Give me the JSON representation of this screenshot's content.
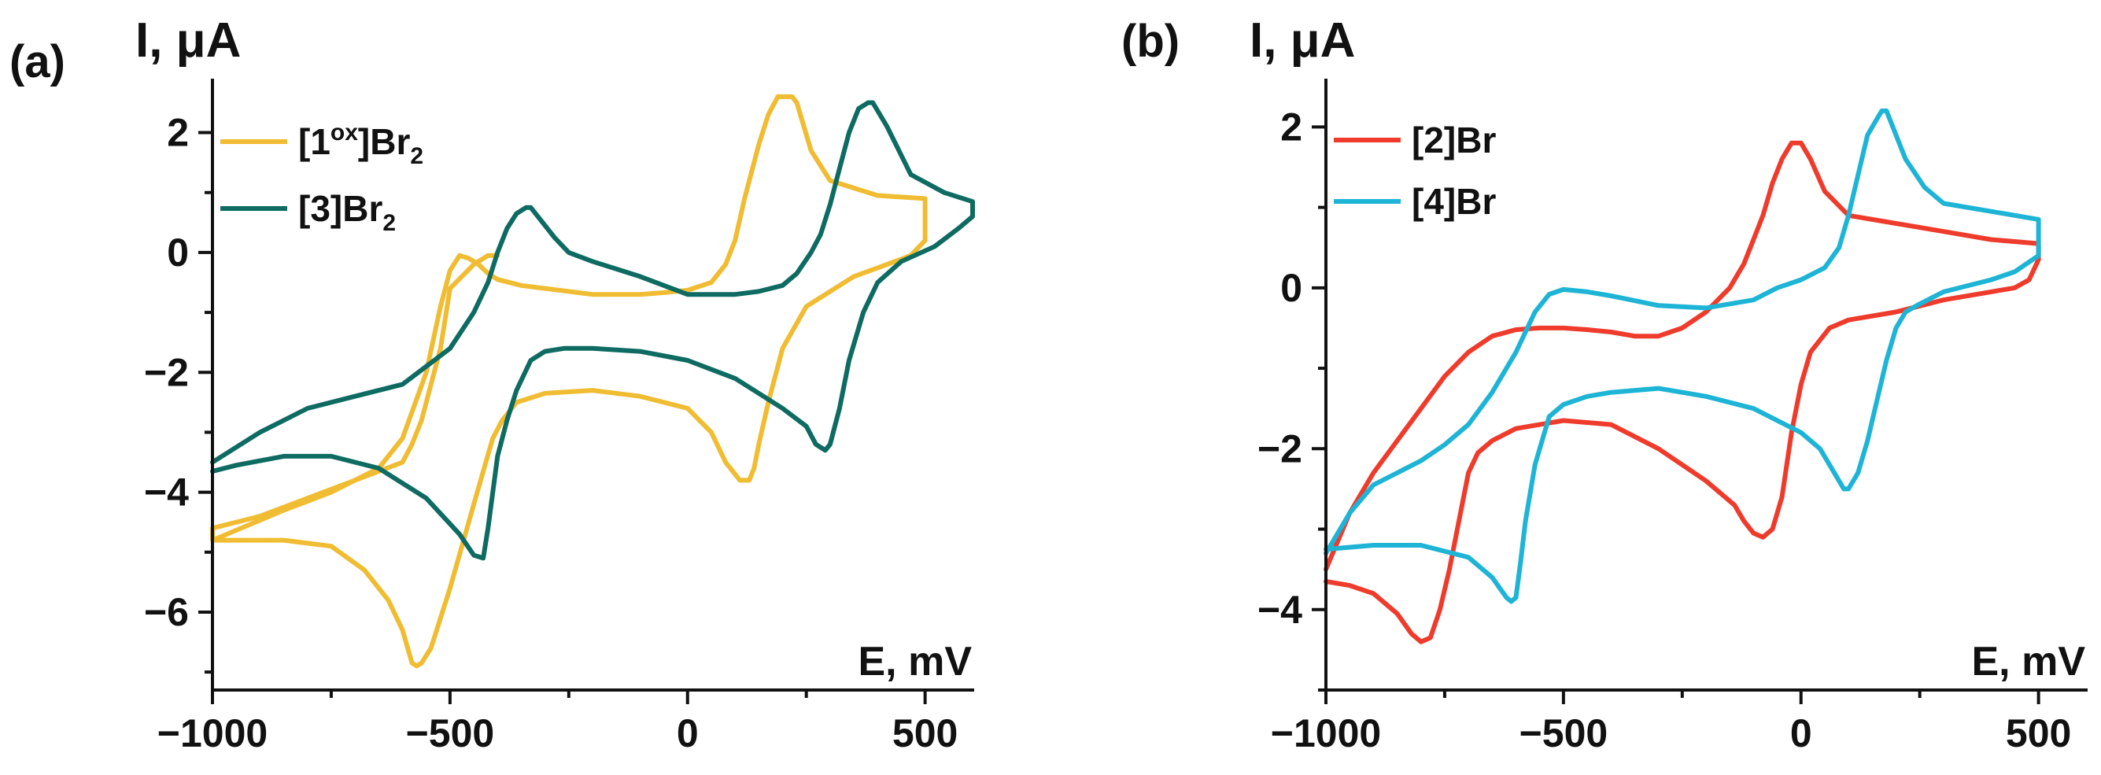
{
  "chart_data": [
    {
      "type": "line",
      "panel_label": "(a)",
      "ylabel": "I, μA",
      "xlabel": "E, mV",
      "xlim": [
        -1000,
        600
      ],
      "ylim": [
        -7.3,
        2.9
      ],
      "xticks": [
        -1000,
        -500,
        0,
        500
      ],
      "xtick_labels": [
        "−1000",
        "−500",
        "0",
        "500"
      ],
      "yticks": [
        -6,
        -4,
        -2,
        0,
        2
      ],
      "ytick_labels": [
        "−6",
        "−4",
        "−2",
        "0",
        "2"
      ],
      "legend_position": "top-left",
      "series": [
        {
          "name": "[1ox]Br2",
          "legend": {
            "base": "[1",
            "sup": "ox",
            "mid": "]Br",
            "sub": "2"
          },
          "color": "#F0BC32",
          "x": [
            -1000,
            -850,
            -750,
            -650,
            -600,
            -550,
            -520,
            -500,
            -480,
            -460,
            -440,
            -420,
            -400,
            -350,
            -300,
            -200,
            -100,
            -50,
            0,
            50,
            80,
            100,
            120,
            150,
            170,
            190,
            210,
            220,
            230,
            260,
            300,
            400,
            500,
            500,
            470,
            420,
            350,
            250,
            200,
            170,
            150,
            140,
            130,
            110,
            80,
            50,
            0,
            -100,
            -200,
            -300,
            -360,
            -390,
            -410,
            -450,
            -500,
            -540,
            -560,
            -570,
            -580,
            -600,
            -630,
            -680,
            -750,
            -850,
            -950,
            -1000,
            -1000,
            -900,
            -800,
            -700,
            -600,
            -580,
            -560,
            -540,
            -520,
            -500,
            -450,
            -420,
            -400
          ],
          "y": [
            -4.8,
            -4.3,
            -4.0,
            -3.6,
            -3.1,
            -2.0,
            -0.9,
            -0.3,
            -0.05,
            -0.1,
            -0.2,
            -0.35,
            -0.45,
            -0.55,
            -0.6,
            -0.7,
            -0.7,
            -0.67,
            -0.63,
            -0.5,
            -0.2,
            0.2,
            0.9,
            1.8,
            2.3,
            2.6,
            2.6,
            2.6,
            2.5,
            1.7,
            1.2,
            0.95,
            0.9,
            0.2,
            -0.05,
            -0.2,
            -0.4,
            -0.9,
            -1.6,
            -2.5,
            -3.2,
            -3.6,
            -3.8,
            -3.8,
            -3.5,
            -3.0,
            -2.6,
            -2.4,
            -2.3,
            -2.35,
            -2.5,
            -2.8,
            -3.1,
            -4.2,
            -5.6,
            -6.6,
            -6.85,
            -6.9,
            -6.85,
            -6.3,
            -5.8,
            -5.3,
            -4.9,
            -4.8,
            -4.8,
            -4.8,
            -4.6,
            -4.4,
            -4.1,
            -3.8,
            -3.5,
            -3.2,
            -2.8,
            -2.2,
            -1.6,
            -0.6,
            -0.2,
            -0.05,
            -0.05
          ]
        },
        {
          "name": "[3]Br2",
          "legend": {
            "base": "[3",
            "sup": "",
            "mid": "]Br",
            "sub": "2"
          },
          "color": "#0E6B62",
          "x": [
            -1000,
            -900,
            -800,
            -700,
            -600,
            -500,
            -450,
            -420,
            -400,
            -380,
            -360,
            -340,
            -330,
            -310,
            -280,
            -250,
            -200,
            -100,
            0,
            100,
            150,
            200,
            230,
            260,
            280,
            300,
            320,
            340,
            360,
            380,
            390,
            420,
            470,
            540,
            600,
            600,
            570,
            520,
            450,
            400,
            370,
            340,
            320,
            310,
            300,
            290,
            270,
            250,
            200,
            100,
            0,
            -100,
            -200,
            -260,
            -300,
            -330,
            -360,
            -380,
            -400,
            -420,
            -430,
            -450,
            -480,
            -550,
            -650,
            -750,
            -850,
            -950,
            -1000
          ],
          "y": [
            -3.5,
            -3.0,
            -2.6,
            -2.4,
            -2.2,
            -1.6,
            -1.0,
            -0.5,
            0.0,
            0.4,
            0.65,
            0.75,
            0.75,
            0.55,
            0.25,
            0.0,
            -0.15,
            -0.4,
            -0.7,
            -0.7,
            -0.65,
            -0.55,
            -0.35,
            0.0,
            0.3,
            0.8,
            1.4,
            2.0,
            2.4,
            2.5,
            2.5,
            2.1,
            1.3,
            1.0,
            0.85,
            0.6,
            0.4,
            0.1,
            -0.15,
            -0.5,
            -1.0,
            -1.8,
            -2.6,
            -2.9,
            -3.2,
            -3.3,
            -3.2,
            -2.9,
            -2.6,
            -2.1,
            -1.8,
            -1.65,
            -1.6,
            -1.6,
            -1.65,
            -1.8,
            -2.3,
            -2.8,
            -3.4,
            -4.6,
            -5.1,
            -5.05,
            -4.7,
            -4.1,
            -3.6,
            -3.4,
            -3.4,
            -3.55,
            -3.65
          ]
        }
      ]
    },
    {
      "type": "line",
      "panel_label": "(b)",
      "ylabel": "I, μA",
      "xlabel": "E, mV",
      "xlim": [
        -1000,
        600
      ],
      "ylim": [
        -5.0,
        2.6
      ],
      "xticks": [
        -1000,
        -500,
        0,
        500
      ],
      "xtick_labels": [
        "−1000",
        "−500",
        "0",
        "500"
      ],
      "yticks": [
        -4,
        -2,
        0,
        2
      ],
      "ytick_labels": [
        "−4",
        "−2",
        "0",
        "2"
      ],
      "legend_position": "top-left",
      "series": [
        {
          "name": "[2]Br",
          "legend": {
            "base": "[2]Br",
            "sup": "",
            "mid": "",
            "sub": ""
          },
          "color": "#EE3B2B",
          "x": [
            -1000,
            -950,
            -900,
            -850,
            -800,
            -750,
            -700,
            -650,
            -600,
            -550,
            -500,
            -450,
            -400,
            -350,
            -300,
            -250,
            -200,
            -150,
            -120,
            -100,
            -80,
            -60,
            -40,
            -20,
            0,
            20,
            50,
            100,
            200,
            300,
            400,
            500,
            500,
            480,
            450,
            400,
            300,
            200,
            100,
            60,
            20,
            0,
            -20,
            -40,
            -60,
            -80,
            -100,
            -120,
            -140,
            -200,
            -300,
            -400,
            -500,
            -550,
            -600,
            -650,
            -680,
            -700,
            -720,
            -740,
            -760,
            -780,
            -800,
            -820,
            -850,
            -900,
            -950,
            -1000
          ],
          "y": [
            -3.5,
            -2.8,
            -2.3,
            -1.9,
            -1.5,
            -1.1,
            -0.8,
            -0.6,
            -0.52,
            -0.5,
            -0.5,
            -0.52,
            -0.55,
            -0.6,
            -0.6,
            -0.5,
            -0.3,
            0.0,
            0.3,
            0.6,
            0.9,
            1.3,
            1.6,
            1.8,
            1.8,
            1.6,
            1.2,
            0.9,
            0.8,
            0.7,
            0.6,
            0.55,
            0.35,
            0.1,
            0.0,
            -0.05,
            -0.15,
            -0.3,
            -0.4,
            -0.5,
            -0.8,
            -1.2,
            -1.8,
            -2.6,
            -3.0,
            -3.1,
            -3.05,
            -2.9,
            -2.7,
            -2.4,
            -2.0,
            -1.7,
            -1.65,
            -1.7,
            -1.75,
            -1.9,
            -2.05,
            -2.3,
            -2.9,
            -3.5,
            -4.0,
            -4.35,
            -4.4,
            -4.3,
            -4.05,
            -3.8,
            -3.7,
            -3.65
          ]
        },
        {
          "name": "[4]Br",
          "legend": {
            "base": "[4]Br",
            "sup": "",
            "mid": "",
            "sub": ""
          },
          "color": "#1DB4D6",
          "x": [
            -1000,
            -950,
            -900,
            -850,
            -800,
            -750,
            -700,
            -650,
            -600,
            -560,
            -530,
            -500,
            -450,
            -400,
            -300,
            -200,
            -100,
            -50,
            0,
            50,
            80,
            100,
            120,
            140,
            160,
            170,
            180,
            200,
            220,
            260,
            300,
            400,
            500,
            500,
            450,
            400,
            300,
            250,
            220,
            200,
            180,
            160,
            140,
            120,
            100,
            90,
            80,
            60,
            40,
            0,
            -100,
            -200,
            -300,
            -400,
            -450,
            -500,
            -530,
            -560,
            -580,
            -590,
            -600,
            -610,
            -620,
            -650,
            -700,
            -800,
            -900,
            -1000
          ],
          "y": [
            -3.3,
            -2.8,
            -2.45,
            -2.3,
            -2.15,
            -1.95,
            -1.7,
            -1.3,
            -0.8,
            -0.3,
            -0.08,
            -0.02,
            -0.05,
            -0.1,
            -0.22,
            -0.25,
            -0.15,
            0.0,
            0.1,
            0.25,
            0.5,
            0.9,
            1.4,
            1.9,
            2.1,
            2.2,
            2.2,
            1.9,
            1.6,
            1.25,
            1.05,
            0.95,
            0.85,
            0.4,
            0.2,
            0.1,
            -0.05,
            -0.2,
            -0.3,
            -0.5,
            -0.9,
            -1.4,
            -1.9,
            -2.3,
            -2.5,
            -2.5,
            -2.4,
            -2.2,
            -2.0,
            -1.8,
            -1.5,
            -1.35,
            -1.25,
            -1.3,
            -1.35,
            -1.45,
            -1.6,
            -2.2,
            -2.9,
            -3.4,
            -3.85,
            -3.9,
            -3.85,
            -3.6,
            -3.35,
            -3.2,
            -3.2,
            -3.25
          ]
        }
      ]
    }
  ]
}
